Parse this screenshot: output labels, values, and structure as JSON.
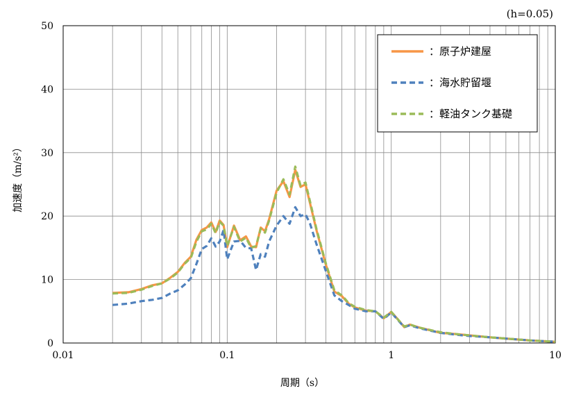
{
  "chart_data": {
    "type": "line",
    "annotation": "(h=0.05)",
    "xlabel": "周期（s）",
    "ylabel": "加速度（m/s²）",
    "x_scale": "log",
    "xlim": [
      0.01,
      10
    ],
    "ylim": [
      0,
      50
    ],
    "x_ticks": [
      {
        "value": 0.01,
        "label": "0.01"
      },
      {
        "value": 0.1,
        "label": "0.1"
      },
      {
        "value": 1,
        "label": "1"
      },
      {
        "value": 10,
        "label": "10"
      }
    ],
    "y_ticks": [
      {
        "value": 0,
        "label": "0"
      },
      {
        "value": 10,
        "label": "10"
      },
      {
        "value": 20,
        "label": "20"
      },
      {
        "value": 30,
        "label": "30"
      },
      {
        "value": 40,
        "label": "40"
      },
      {
        "value": 50,
        "label": "50"
      }
    ],
    "grid": true,
    "legend_position": "top-right",
    "series": [
      {
        "name": "：原子炉建屋",
        "color": "#F79646",
        "style": "solid",
        "x": [
          0.02,
          0.025,
          0.03,
          0.035,
          0.04,
          0.045,
          0.05,
          0.055,
          0.06,
          0.065,
          0.07,
          0.075,
          0.08,
          0.085,
          0.09,
          0.095,
          0.1,
          0.11,
          0.12,
          0.13,
          0.14,
          0.15,
          0.16,
          0.17,
          0.18,
          0.2,
          0.22,
          0.24,
          0.26,
          0.28,
          0.3,
          0.32,
          0.35,
          0.4,
          0.45,
          0.5,
          0.55,
          0.6,
          0.7,
          0.8,
          0.9,
          1.0,
          1.1,
          1.2,
          1.3,
          1.5,
          2.0,
          2.5,
          3.0,
          4.0,
          5.0,
          7.0,
          10.0
        ],
        "y": [
          7.9,
          8.0,
          8.5,
          9.1,
          9.4,
          10.3,
          11.2,
          12.6,
          13.6,
          16.3,
          17.8,
          18.2,
          19.0,
          17.5,
          19.3,
          18.6,
          15.1,
          18.5,
          16.2,
          16.8,
          15.2,
          15.1,
          18.2,
          17.6,
          19.5,
          24.0,
          25.5,
          23.0,
          27.3,
          24.6,
          25.0,
          22.0,
          17.8,
          12.3,
          8.1,
          7.4,
          6.2,
          5.6,
          5.1,
          5.0,
          3.9,
          4.9,
          3.7,
          2.5,
          2.9,
          2.4,
          1.6,
          1.4,
          1.2,
          0.9,
          0.7,
          0.4,
          0.2
        ]
      },
      {
        "name": "：海水貯留堰",
        "color": "#4F81BD",
        "style": "dashed",
        "x": [
          0.02,
          0.025,
          0.03,
          0.035,
          0.04,
          0.045,
          0.05,
          0.055,
          0.06,
          0.065,
          0.07,
          0.075,
          0.08,
          0.085,
          0.09,
          0.095,
          0.1,
          0.11,
          0.12,
          0.13,
          0.14,
          0.15,
          0.16,
          0.17,
          0.18,
          0.2,
          0.22,
          0.24,
          0.26,
          0.28,
          0.3,
          0.32,
          0.35,
          0.4,
          0.45,
          0.5,
          0.55,
          0.6,
          0.7,
          0.8,
          0.9,
          1.0,
          1.1,
          1.2,
          1.3,
          1.5,
          2.0,
          2.5,
          3.0,
          4.0,
          5.0,
          7.0,
          10.0
        ],
        "y": [
          6.0,
          6.2,
          6.6,
          6.8,
          7.1,
          7.8,
          8.3,
          9.2,
          10.2,
          12.5,
          14.8,
          15.3,
          16.5,
          15.2,
          16.0,
          17.8,
          13.2,
          16.0,
          16.1,
          15.0,
          14.9,
          11.5,
          14.0,
          13.6,
          16.0,
          18.5,
          20.0,
          18.8,
          21.4,
          20.0,
          20.3,
          18.8,
          15.6,
          11.3,
          7.5,
          6.6,
          6.0,
          5.4,
          5.0,
          5.0,
          3.8,
          4.8,
          3.6,
          2.5,
          2.8,
          2.3,
          1.6,
          1.3,
          1.1,
          0.9,
          0.7,
          0.4,
          0.2
        ]
      },
      {
        "name": "：軽油タンク基礎",
        "color": "#9BBB59",
        "style": "dashed",
        "x": [
          0.02,
          0.025,
          0.03,
          0.035,
          0.04,
          0.045,
          0.05,
          0.055,
          0.06,
          0.065,
          0.07,
          0.075,
          0.08,
          0.085,
          0.09,
          0.095,
          0.1,
          0.11,
          0.12,
          0.13,
          0.14,
          0.15,
          0.16,
          0.17,
          0.18,
          0.2,
          0.22,
          0.24,
          0.26,
          0.28,
          0.3,
          0.32,
          0.35,
          0.4,
          0.45,
          0.5,
          0.55,
          0.6,
          0.7,
          0.8,
          0.9,
          1.0,
          1.1,
          1.2,
          1.3,
          1.5,
          2.0,
          2.5,
          3.0,
          4.0,
          5.0,
          7.0,
          10.0
        ],
        "y": [
          7.8,
          7.9,
          8.4,
          9.0,
          9.4,
          10.2,
          11.1,
          12.5,
          13.4,
          16.0,
          17.6,
          17.9,
          18.8,
          17.3,
          19.1,
          18.5,
          15.3,
          18.3,
          16.0,
          16.6,
          15.0,
          15.3,
          18.0,
          17.4,
          19.3,
          23.7,
          25.8,
          23.4,
          27.8,
          24.8,
          25.3,
          22.3,
          18.0,
          12.5,
          8.3,
          7.5,
          6.3,
          5.7,
          5.2,
          5.0,
          4.0,
          4.9,
          3.7,
          2.6,
          2.9,
          2.4,
          1.7,
          1.4,
          1.2,
          0.9,
          0.7,
          0.4,
          0.2
        ]
      }
    ]
  }
}
